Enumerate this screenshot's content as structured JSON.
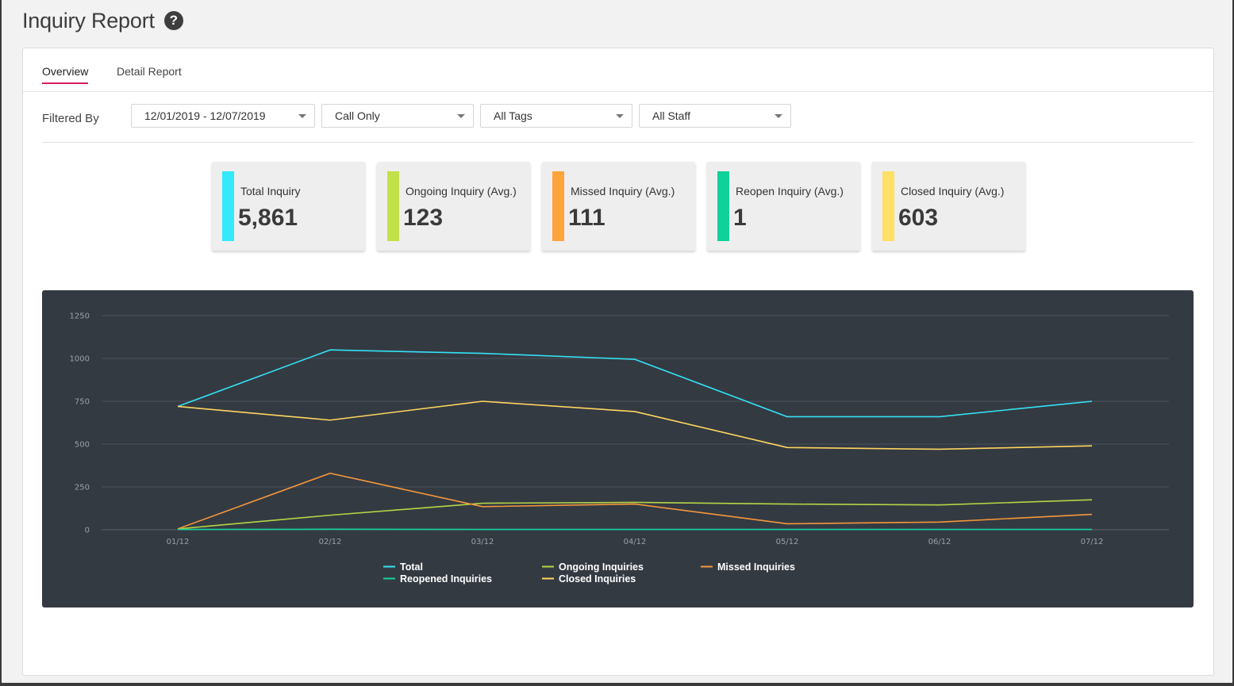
{
  "page": {
    "title": "Inquiry Report",
    "help_icon": "question-circle-icon"
  },
  "tabs": [
    {
      "label": "Overview",
      "active": true
    },
    {
      "label": "Detail Report",
      "active": false
    }
  ],
  "filters": {
    "label": "Filtered By",
    "date_range": "12/01/2019 - 12/07/2019",
    "type": "Call Only",
    "tags": "All Tags",
    "staff": "All Staff"
  },
  "stats": [
    {
      "label": "Total Inquiry",
      "value": "5,861",
      "color": "#33e9fb"
    },
    {
      "label": "Ongoing Inquiry (Avg.)",
      "value": "123",
      "color": "#c2e04a"
    },
    {
      "label": "Missed Inquiry (Avg.)",
      "value": "111",
      "color": "#ffa33b"
    },
    {
      "label": "Reopen Inquiry (Avg.)",
      "value": "1",
      "color": "#0ed29a"
    },
    {
      "label": "Closed Inquiry (Avg.)",
      "value": "603",
      "color": "#ffe066"
    }
  ],
  "chart_data": {
    "type": "line",
    "title": "",
    "xlabel": "",
    "ylabel": "",
    "x": [
      "01/12",
      "02/12",
      "03/12",
      "04/12",
      "05/12",
      "06/12",
      "07/12"
    ],
    "ylim": [
      0,
      1250
    ],
    "yticks": [
      0,
      250,
      500,
      750,
      1000,
      1250
    ],
    "grid": true,
    "legend_position": "bottom",
    "series": [
      {
        "name": "Total",
        "color": "#33e3f5",
        "values": [
          720,
          1050,
          1030,
          995,
          660,
          660,
          750
        ]
      },
      {
        "name": "Ongoing Inquiries",
        "color": "#b4d645",
        "values": [
          5,
          85,
          155,
          160,
          150,
          145,
          175
        ]
      },
      {
        "name": "Missed Inquiries",
        "color": "#f5973c",
        "values": [
          5,
          330,
          135,
          150,
          35,
          45,
          90
        ]
      },
      {
        "name": "Reopened Inquiries",
        "color": "#12d4a0",
        "values": [
          2,
          3,
          2,
          2,
          2,
          2,
          2
        ]
      },
      {
        "name": "Closed Inquiries",
        "color": "#ffd560",
        "values": [
          720,
          640,
          750,
          690,
          480,
          470,
          490
        ]
      }
    ]
  }
}
